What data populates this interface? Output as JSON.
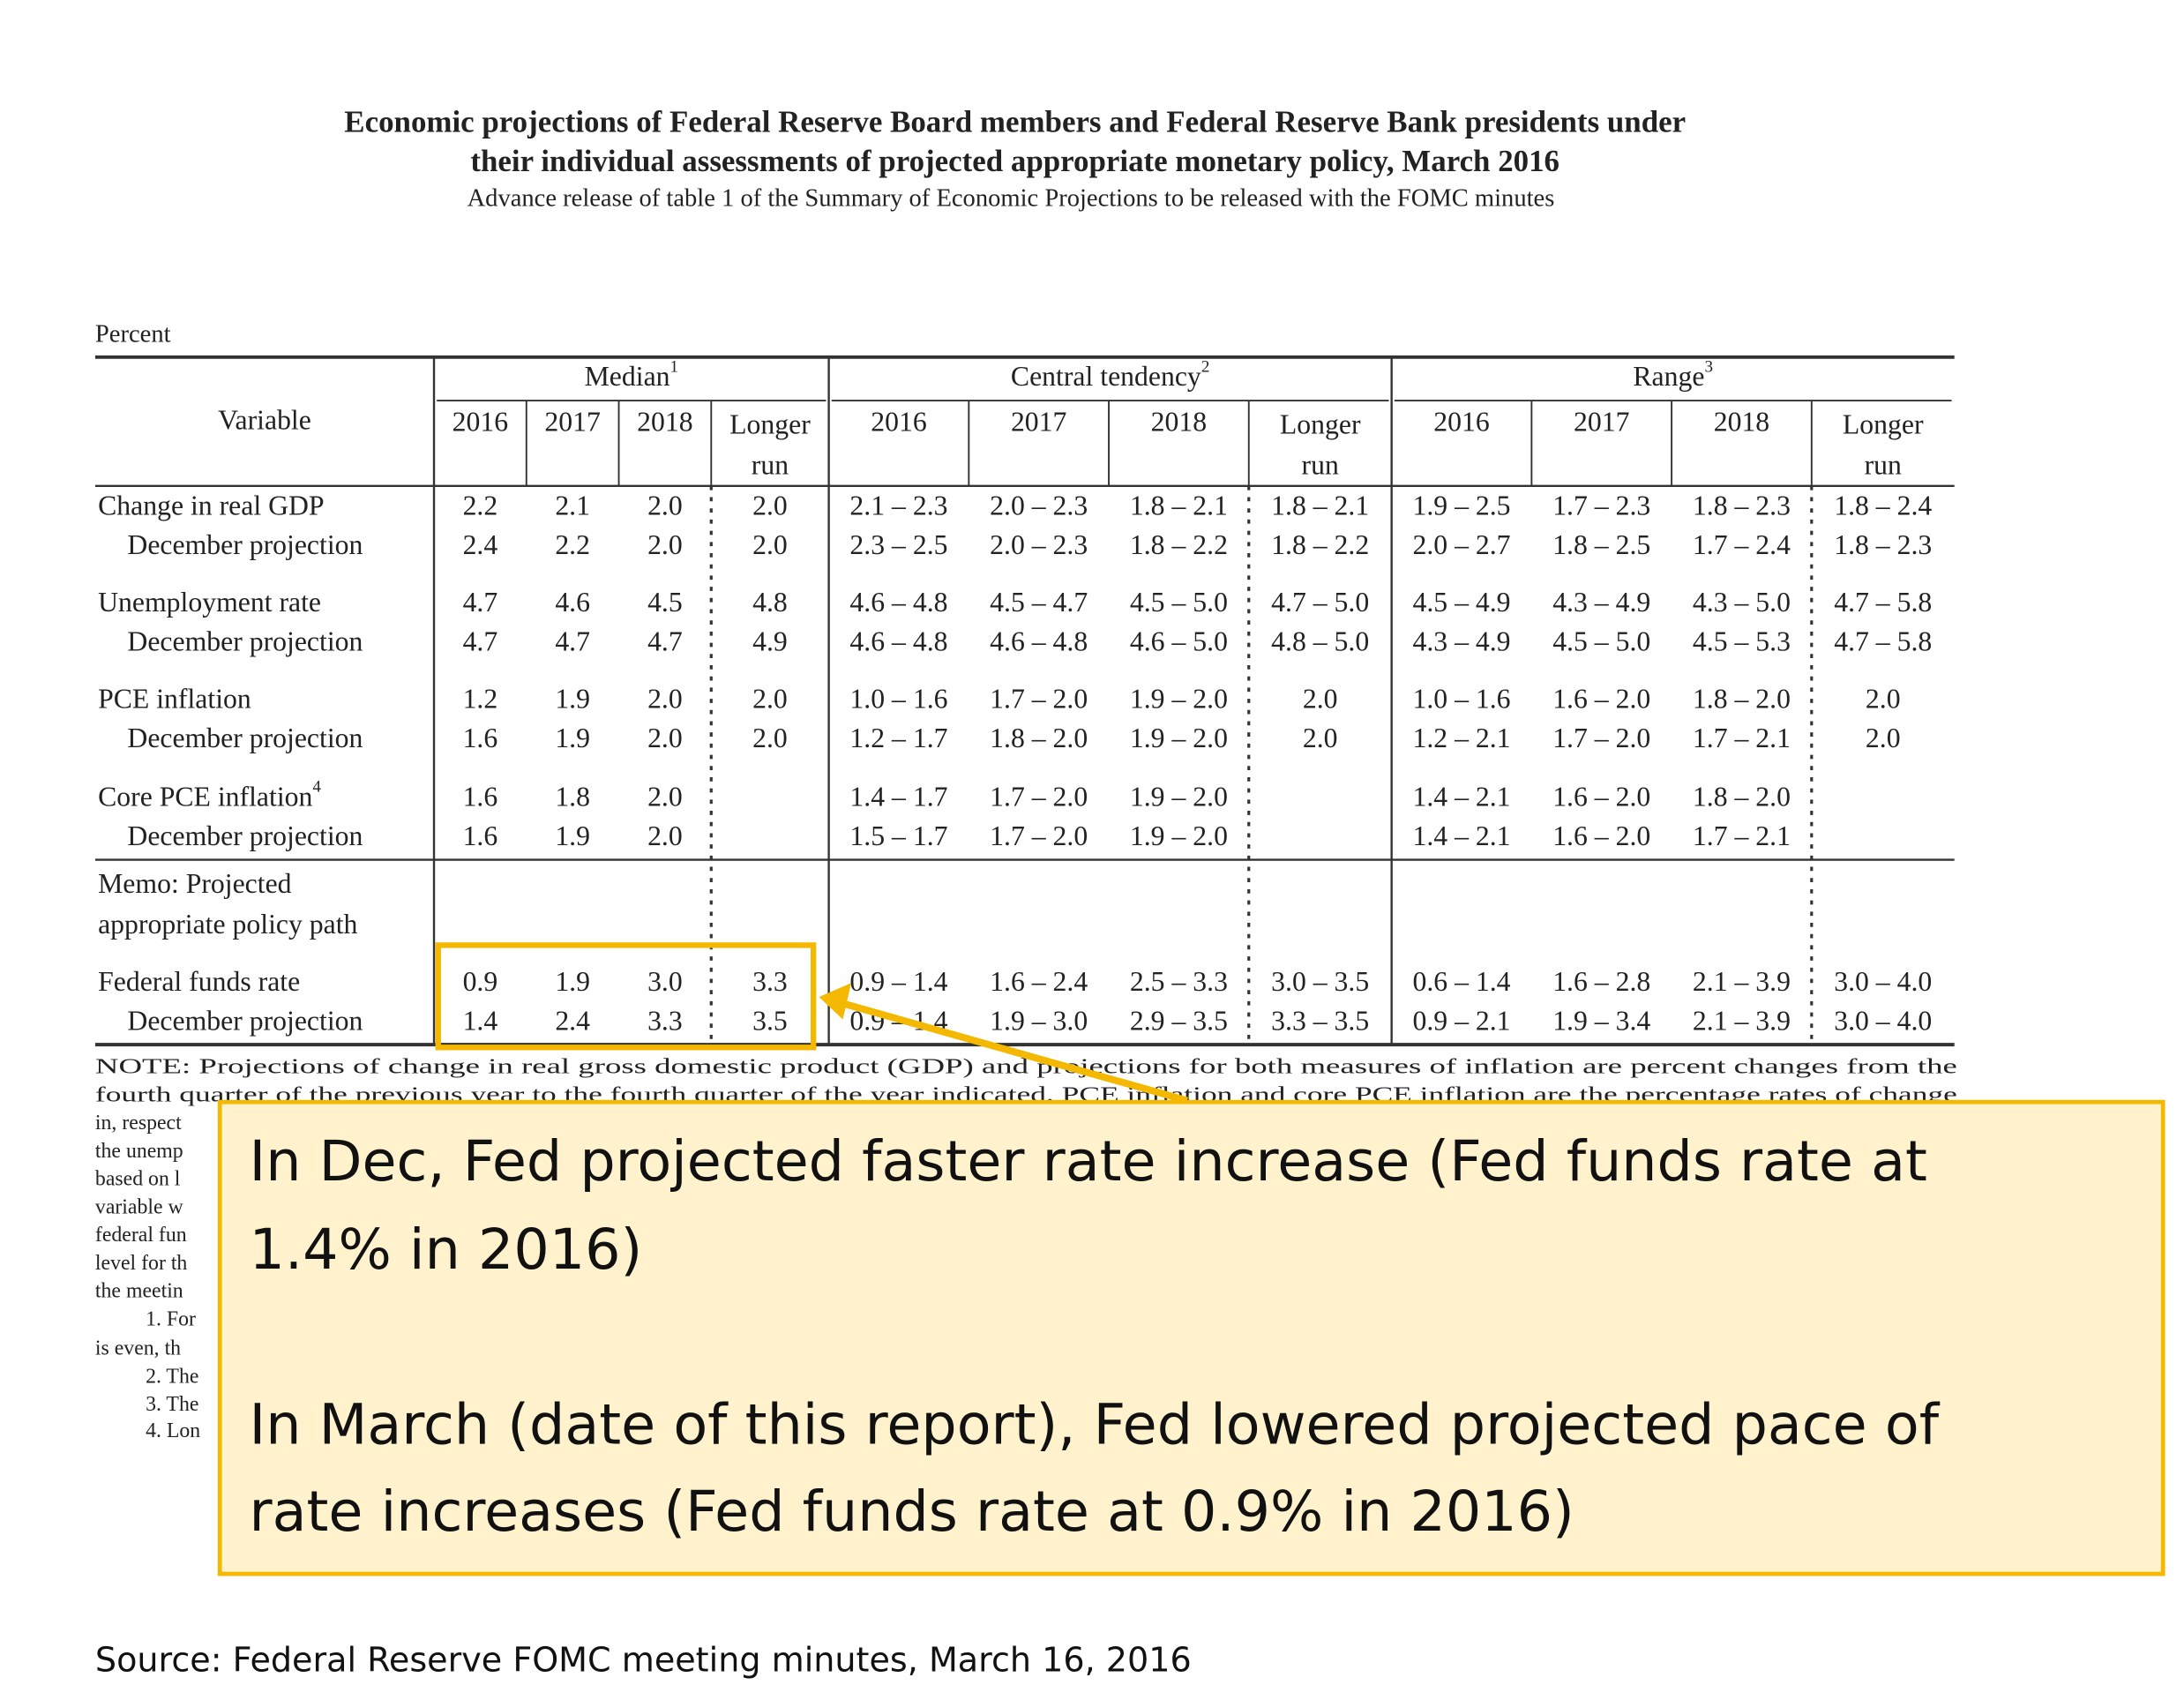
{
  "header": {
    "title_lines": [
      "Economic projections of Federal Reserve Board members and Federal Reserve Bank presidents under",
      "their individual assessments of projected appropriate monetary policy, March 2016"
    ],
    "subtitle": "Advance release of table 1 of the Summary of Economic Projections to be released with the FOMC minutes"
  },
  "table": {
    "unit": "Percent",
    "variable_header": "Variable",
    "groups": [
      {
        "label": "Median",
        "footnote": "1",
        "columns": [
          "2016",
          "2017",
          "2018",
          [
            "Longer",
            "run"
          ]
        ]
      },
      {
        "label": "Central tendency",
        "footnote": "2",
        "columns": [
          "2016",
          "2017",
          "2018",
          [
            "Longer",
            "run"
          ]
        ]
      },
      {
        "label": "Range",
        "footnote": "3",
        "columns": [
          "2016",
          "2017",
          "2018",
          [
            "Longer",
            "run"
          ]
        ]
      }
    ],
    "rows": [
      {
        "label": "Change in real GDP",
        "cells": [
          "2.2",
          "2.1",
          "2.0",
          "2.0",
          "2.1 – 2.3",
          "2.0 – 2.3",
          "1.8 – 2.1",
          "1.8 – 2.1",
          "1.9 – 2.5",
          "1.7 – 2.3",
          "1.8 – 2.3",
          "1.8 – 2.4"
        ],
        "december": {
          "label": "December projection",
          "cells": [
            "2.4",
            "2.2",
            "2.0",
            "2.0",
            "2.3 – 2.5",
            "2.0 – 2.3",
            "1.8 – 2.2",
            "1.8 – 2.2",
            "2.0 – 2.7",
            "1.8 – 2.5",
            "1.7 – 2.4",
            "1.8 – 2.3"
          ]
        }
      },
      {
        "label": "Unemployment rate",
        "cells": [
          "4.7",
          "4.6",
          "4.5",
          "4.8",
          "4.6 – 4.8",
          "4.5 – 4.7",
          "4.5 – 5.0",
          "4.7 – 5.0",
          "4.5 – 4.9",
          "4.3 – 4.9",
          "4.3 – 5.0",
          "4.7 – 5.8"
        ],
        "december": {
          "label": "December projection",
          "cells": [
            "4.7",
            "4.7",
            "4.7",
            "4.9",
            "4.6 – 4.8",
            "4.6 – 4.8",
            "4.6 – 5.0",
            "4.8 – 5.0",
            "4.3 – 4.9",
            "4.5 – 5.0",
            "4.5 – 5.3",
            "4.7 – 5.8"
          ]
        }
      },
      {
        "label": "PCE inflation",
        "cells": [
          "1.2",
          "1.9",
          "2.0",
          "2.0",
          "1.0 – 1.6",
          "1.7 – 2.0",
          "1.9 – 2.0",
          "2.0",
          "1.0 – 1.6",
          "1.6 – 2.0",
          "1.8 – 2.0",
          "2.0"
        ],
        "december": {
          "label": "December projection",
          "cells": [
            "1.6",
            "1.9",
            "2.0",
            "2.0",
            "1.2 – 1.7",
            "1.8 – 2.0",
            "1.9 – 2.0",
            "2.0",
            "1.2 – 2.1",
            "1.7 – 2.0",
            "1.7 – 2.1",
            "2.0"
          ]
        }
      },
      {
        "label": "Core PCE inflation",
        "footnote": "4",
        "cells": [
          "1.6",
          "1.8",
          "2.0",
          null,
          "1.4 – 1.7",
          "1.7 – 2.0",
          "1.9 – 2.0",
          null,
          "1.4 – 2.1",
          "1.6 – 2.0",
          "1.8 – 2.0",
          null
        ],
        "december": {
          "label": "December projection",
          "cells": [
            "1.6",
            "1.9",
            "2.0",
            null,
            "1.5 – 1.7",
            "1.7 – 2.0",
            "1.9 – 2.0",
            null,
            "1.4 – 2.1",
            "1.6 – 2.0",
            "1.7 – 2.1",
            null
          ]
        }
      }
    ],
    "policy": {
      "memo": [
        "Memo: Projected",
        "appropriate policy path"
      ],
      "label": "Federal funds rate",
      "cells": [
        "0.9",
        "1.9",
        "3.0",
        "3.3",
        "0.9 – 1.4",
        "1.6 – 2.4",
        "2.5 – 3.3",
        "3.0 – 3.5",
        "0.6 – 1.4",
        "1.6 – 2.8",
        "2.1 – 3.9",
        "3.0 – 4.0"
      ],
      "december": {
        "label": "December projection",
        "cells": [
          "1.4",
          "2.4",
          "3.3",
          "3.5",
          "0.9 – 1.4",
          "1.9 – 3.0",
          "2.9 – 3.5",
          "3.3 – 3.5",
          "0.9 – 2.1",
          "1.9 – 3.4",
          "2.1 – 3.9",
          "3.0 – 4.0"
        ]
      }
    }
  },
  "note": {
    "lines": [
      "NOTE: Projections of change in real gross domestic product (GDP) and projections for both measures of inflation are percent changes from the",
      "fourth quarter of the previous year to the fourth quarter of the year indicated. PCE inflation and core PCE inflation are the percentage rates of change"
    ],
    "fragments": [
      "in, respect",
      "the unemp",
      "based on l",
      "variable w",
      "federal fun",
      "level for th",
      "the meetin",
      "1. For",
      "is even, th",
      "2. The",
      "3. The",
      "4. Lon"
    ]
  },
  "callout": {
    "paragraphs": [
      [
        "In Dec, Fed projected faster rate increase (Fed funds rate at",
        "1.4% in 2016)"
      ],
      [
        "In March (date of this report), Fed lowered projected pace of",
        "rate increases (Fed funds rate at 0.9% in 2016)"
      ]
    ]
  },
  "source": "Source: Federal Reserve FOMC meeting minutes, March 16, 2016"
}
